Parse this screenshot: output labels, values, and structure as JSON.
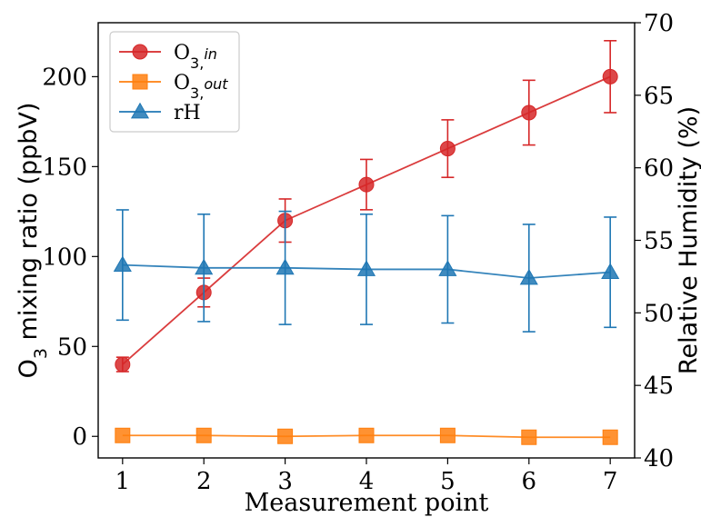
{
  "chart_data": {
    "type": "line",
    "x": [
      1,
      2,
      3,
      4,
      5,
      6,
      7
    ],
    "xlabel": "Measurement point",
    "ylabel_left": {
      "base": "O",
      "sub": "3",
      "rest": " mixing ratio (ppbV)"
    },
    "ylabel_right": "Relative Humidity (%)",
    "xlim": [
      0.7,
      7.3
    ],
    "ylim_left": [
      -12,
      230
    ],
    "ylim_right": [
      40,
      70
    ],
    "xticks": [
      1,
      2,
      3,
      4,
      5,
      6,
      7
    ],
    "yticks_left": [
      0,
      50,
      100,
      150,
      200
    ],
    "yticks_right": [
      40,
      45,
      50,
      55,
      60,
      65,
      70
    ],
    "grid": false,
    "legend_position": "top-left",
    "series": [
      {
        "key": "o3_in",
        "name": {
          "base": "O",
          "sub": "3,",
          "italic": "in"
        },
        "axis": "left",
        "marker": "circle",
        "color": "#d62728",
        "values": [
          40,
          80,
          120,
          140,
          160,
          180,
          200
        ],
        "errors": [
          4,
          8,
          12,
          14,
          16,
          18,
          20
        ]
      },
      {
        "key": "o3_out",
        "name": {
          "base": "O",
          "sub": "3,",
          "italic": "out"
        },
        "axis": "left",
        "marker": "square",
        "color": "#ff7f0e",
        "values": [
          0.5,
          0.5,
          0,
          0.5,
          0.5,
          -0.5,
          -0.5
        ],
        "errors": [
          0,
          0,
          0,
          0,
          0,
          0,
          0
        ]
      },
      {
        "key": "rh",
        "name": {
          "base": "rH",
          "sub": "",
          "italic": ""
        },
        "axis": "right",
        "marker": "triangle",
        "color": "#1f77b4",
        "values": [
          53.3,
          53.1,
          53.1,
          53.0,
          53.0,
          52.4,
          52.8
        ],
        "errors": [
          3.8,
          3.7,
          3.9,
          3.8,
          3.7,
          3.7,
          3.8
        ]
      }
    ]
  }
}
